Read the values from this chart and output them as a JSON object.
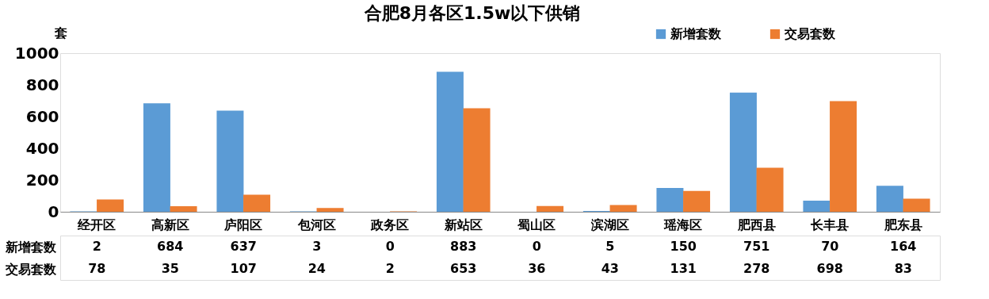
{
  "chart_data": {
    "type": "bar",
    "title": "合肥8月各区1.5w以下供销",
    "ylabel": "套",
    "categories": [
      "经开区",
      "高新区",
      "庐阳区",
      "包河区",
      "政务区",
      "新站区",
      "蜀山区",
      "滨湖区",
      "瑶海区",
      "肥西县",
      "长丰县",
      "肥东县"
    ],
    "series": [
      {
        "name": "新增套数",
        "color": "#5b9bd5",
        "values": [
          2,
          684,
          637,
          3,
          0,
          883,
          0,
          5,
          150,
          751,
          70,
          164
        ]
      },
      {
        "name": "交易套数",
        "color": "#ed7d31",
        "values": [
          78,
          35,
          107,
          24,
          2,
          653,
          36,
          43,
          131,
          278,
          698,
          83
        ]
      }
    ],
    "ylim": [
      0,
      1000
    ],
    "yticks": [
      0,
      200,
      400,
      600,
      800,
      1000
    ],
    "grid": false,
    "legend": "top right",
    "data_labels": true
  }
}
